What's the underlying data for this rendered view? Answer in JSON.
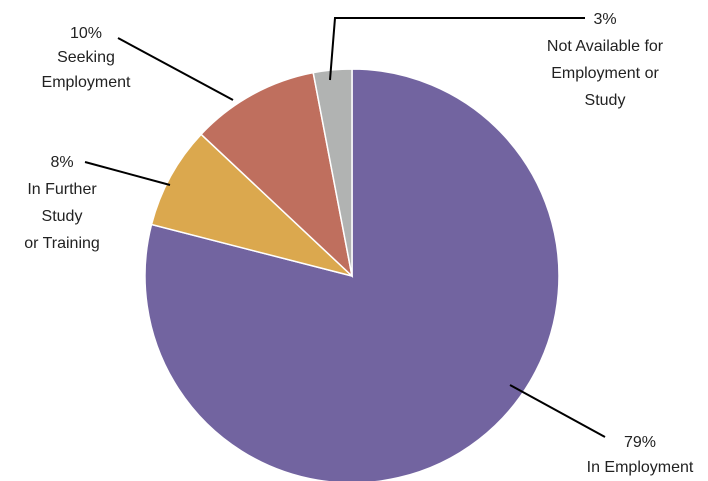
{
  "chart_data": {
    "type": "pie",
    "title": "",
    "start": "12 o'clock, clockwise",
    "slices": [
      {
        "label": "In Employment",
        "value": 79,
        "value_label": "79%",
        "color": "#7264a0"
      },
      {
        "label": "In Further Study or Training",
        "value": 8,
        "value_label": "8%",
        "color": "#dba84e"
      },
      {
        "label": "Seeking Employment",
        "value": 10,
        "value_label": "10%",
        "color": "#bf6f5e"
      },
      {
        "label": "Not Available for Employment or Study",
        "value": 3,
        "value_label": "3%",
        "color": "#b1b3b2"
      }
    ],
    "label_lines": [
      [
        "79%",
        "In Employment"
      ],
      [
        "8%",
        "In Further",
        "Study",
        "or Training"
      ],
      [
        "10%",
        "Seeking",
        "Employment"
      ],
      [
        "3%",
        "Not Available for",
        "Employment or",
        "Study"
      ]
    ]
  }
}
